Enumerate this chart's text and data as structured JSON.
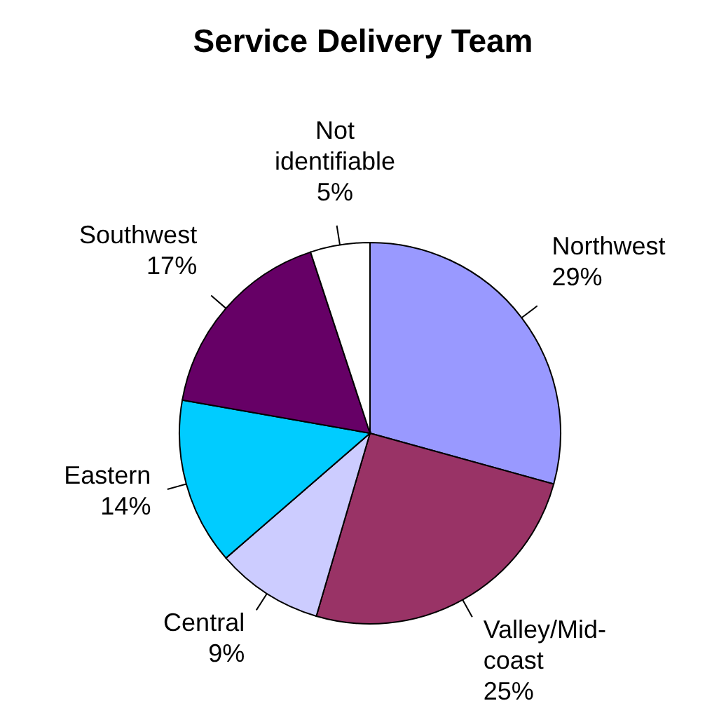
{
  "chart_data": {
    "type": "pie",
    "title": "Service Delivery Team",
    "categories": [
      "Northwest",
      "Valley/Mid-coast",
      "Central",
      "Eastern",
      "Southwest",
      "Not identifiable"
    ],
    "values": [
      29,
      25,
      9,
      14,
      17,
      5
    ],
    "value_labels": [
      "29%",
      "25%",
      "9%",
      "14%",
      "17%",
      "5%"
    ],
    "colors": [
      "#9999ff",
      "#993366",
      "#ccccff",
      "#00ccff",
      "#660066",
      "#ffffff"
    ],
    "legend": false
  }
}
